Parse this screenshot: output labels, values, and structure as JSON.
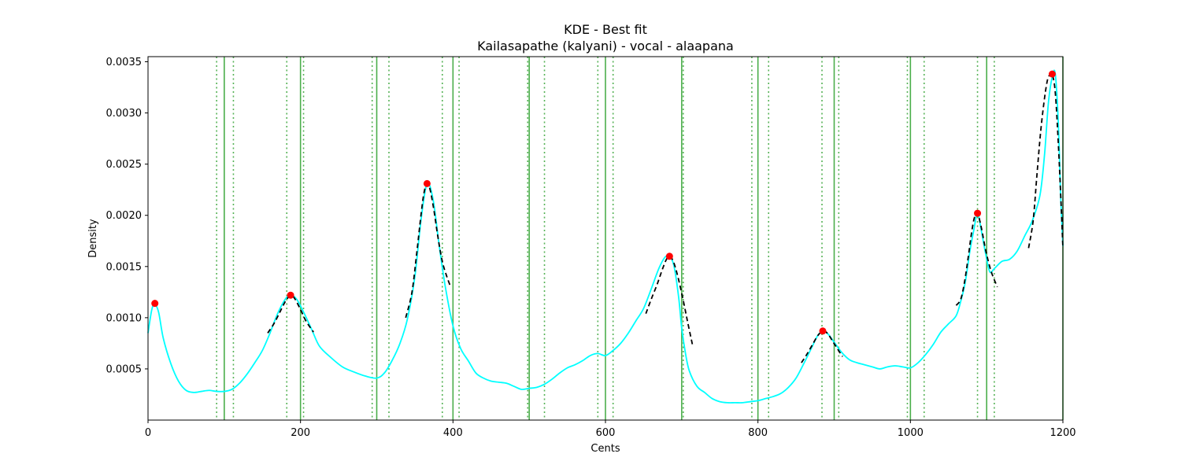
{
  "chart_data": {
    "type": "line",
    "title": "KDE - Best fit",
    "subtitle": "Kailasapathe (kalyani) - vocal - alaapana",
    "xlabel": "Cents",
    "ylabel": "Density",
    "xlim": [
      0,
      1200
    ],
    "ylim": [
      0,
      0.00355
    ],
    "xticks": [
      0,
      200,
      400,
      600,
      800,
      1000,
      1200
    ],
    "yticks": [
      0.0005,
      0.001,
      0.0015,
      0.002,
      0.0025,
      0.003,
      0.0035
    ],
    "ytick_labels": [
      "0.0005",
      "0.0010",
      "0.0015",
      "0.0020",
      "0.0025",
      "0.0030",
      "0.0035"
    ],
    "grid": false,
    "colors": {
      "kde": "#00ffff",
      "fit": "#000000",
      "peak": "#ff0000",
      "reference": "#2ca02c"
    },
    "reference_lines": {
      "solid": [
        100,
        200,
        300,
        400,
        500,
        600,
        700,
        800,
        900,
        1000,
        1100,
        1200
      ],
      "dotted": [
        90,
        112,
        182,
        204,
        294,
        316,
        386,
        408,
        498,
        520,
        590,
        610,
        702,
        792,
        814,
        884,
        906,
        996,
        1018,
        1088,
        1110
      ]
    },
    "series": [
      {
        "kind": "kde",
        "x": [
          0,
          5,
          9,
          14,
          20,
          30,
          40,
          50,
          60,
          70,
          80,
          90,
          100,
          110,
          120,
          130,
          140,
          150,
          160,
          170,
          180,
          187,
          195,
          205,
          215,
          225,
          240,
          255,
          270,
          285,
          300,
          310,
          320,
          330,
          340,
          350,
          358,
          366,
          374,
          382,
          390,
          400,
          410,
          420,
          430,
          440,
          450,
          460,
          470,
          480,
          490,
          500,
          510,
          520,
          530,
          540,
          550,
          560,
          570,
          580,
          590,
          600,
          610,
          620,
          630,
          640,
          650,
          660,
          670,
          678,
          684,
          690,
          696,
          700,
          705,
          710,
          720,
          730,
          740,
          750,
          760,
          770,
          780,
          790,
          800,
          810,
          820,
          830,
          840,
          850,
          860,
          870,
          878,
          885,
          892,
          900,
          910,
          920,
          930,
          940,
          950,
          960,
          970,
          980,
          990,
          1000,
          1010,
          1020,
          1030,
          1040,
          1050,
          1060,
          1066,
          1072,
          1078,
          1083,
          1088,
          1093,
          1098,
          1104,
          1110,
          1120,
          1130,
          1140,
          1150,
          1160,
          1170,
          1176,
          1181,
          1186,
          1190,
          1194,
          1197,
          1200
        ],
        "y": [
          0.00085,
          0.00108,
          0.00113,
          0.00105,
          0.0008,
          0.00055,
          0.00038,
          0.00029,
          0.00027,
          0.00028,
          0.00029,
          0.00028,
          0.00028,
          0.0003,
          0.00036,
          0.00045,
          0.00056,
          0.00068,
          0.00085,
          0.00104,
          0.00118,
          0.00122,
          0.00118,
          0.00104,
          0.00088,
          0.00072,
          0.00061,
          0.00052,
          0.00047,
          0.00043,
          0.00041,
          0.00046,
          0.00058,
          0.00074,
          0.00098,
          0.0014,
          0.00195,
          0.00231,
          0.00215,
          0.0017,
          0.0013,
          0.00092,
          0.0007,
          0.00058,
          0.00046,
          0.00041,
          0.00038,
          0.00037,
          0.00036,
          0.00033,
          0.0003,
          0.00031,
          0.00032,
          0.00035,
          0.0004,
          0.00046,
          0.00051,
          0.00054,
          0.00058,
          0.00063,
          0.00065,
          0.00063,
          0.00068,
          0.00075,
          0.00085,
          0.00097,
          0.00109,
          0.00128,
          0.00148,
          0.00159,
          0.0016,
          0.0015,
          0.0012,
          0.0009,
          0.00065,
          0.00048,
          0.00033,
          0.00027,
          0.00021,
          0.00018,
          0.00017,
          0.00017,
          0.00017,
          0.00018,
          0.00019,
          0.00021,
          0.00023,
          0.00026,
          0.00032,
          0.00041,
          0.00055,
          0.0007,
          0.00082,
          0.00087,
          0.00084,
          0.00076,
          0.00066,
          0.00059,
          0.00056,
          0.00054,
          0.00052,
          0.0005,
          0.00052,
          0.00053,
          0.00052,
          0.00051,
          0.00056,
          0.00064,
          0.00074,
          0.00086,
          0.00094,
          0.00102,
          0.00116,
          0.00135,
          0.00165,
          0.00185,
          0.00202,
          0.00185,
          0.00165,
          0.00145,
          0.00148,
          0.00155,
          0.00157,
          0.00165,
          0.0018,
          0.00195,
          0.0022,
          0.0026,
          0.0031,
          0.00335,
          0.00338,
          0.0029,
          0.0022,
          0.0017
        ]
      },
      {
        "kind": "fit",
        "segments": [
          {
            "x": [
              157,
              165,
              172,
              178,
              183,
              188,
              193,
              200,
              207,
              217
            ],
            "y": [
              0.00085,
              0.00094,
              0.00104,
              0.00113,
              0.00119,
              0.00122,
              0.00118,
              0.00108,
              0.00097,
              0.00086
            ]
          },
          {
            "x": [
              338,
              346,
              352,
              358,
              362,
              366,
              370,
              375,
              380,
              386,
              392,
              397
            ],
            "y": [
              0.001,
              0.00124,
              0.0016,
              0.002,
              0.00222,
              0.00231,
              0.00225,
              0.00205,
              0.0018,
              0.00155,
              0.0014,
              0.0013
            ]
          },
          {
            "x": [
              653,
              660,
              668,
              675,
              680,
              684,
              689,
              695,
              702,
              708,
              714
            ],
            "y": [
              0.00104,
              0.00118,
              0.00133,
              0.00148,
              0.00157,
              0.0016,
              0.00155,
              0.0014,
              0.00117,
              0.00095,
              0.00074
            ]
          },
          {
            "x": [
              857,
              864,
              871,
              878,
              883,
              887,
              892,
              898,
              904,
              911
            ],
            "y": [
              0.00056,
              0.00064,
              0.00073,
              0.00082,
              0.00086,
              0.00087,
              0.00084,
              0.00077,
              0.0007,
              0.00062
            ]
          },
          {
            "x": [
              1060,
              1066,
              1071,
              1076,
              1080,
              1084,
              1088,
              1093,
              1099,
              1106,
              1114
            ],
            "y": [
              0.00112,
              0.00118,
              0.00135,
              0.0016,
              0.00182,
              0.00198,
              0.00202,
              0.00188,
              0.00165,
              0.00145,
              0.0013
            ]
          },
          {
            "x": [
              1155,
              1161,
              1166,
              1171,
              1176,
              1180,
              1183,
              1186,
              1190,
              1194,
              1198,
              1200
            ],
            "y": [
              0.00168,
              0.00195,
              0.0024,
              0.00283,
              0.00315,
              0.00333,
              0.00337,
              0.00338,
              0.0032,
              0.0027,
              0.00205,
              0.00168
            ]
          }
        ]
      },
      {
        "kind": "peaks",
        "x": [
          9,
          187,
          366,
          684,
          885,
          1088,
          1186
        ],
        "y": [
          0.00114,
          0.00122,
          0.00231,
          0.0016,
          0.00087,
          0.00202,
          0.00338
        ]
      }
    ]
  }
}
